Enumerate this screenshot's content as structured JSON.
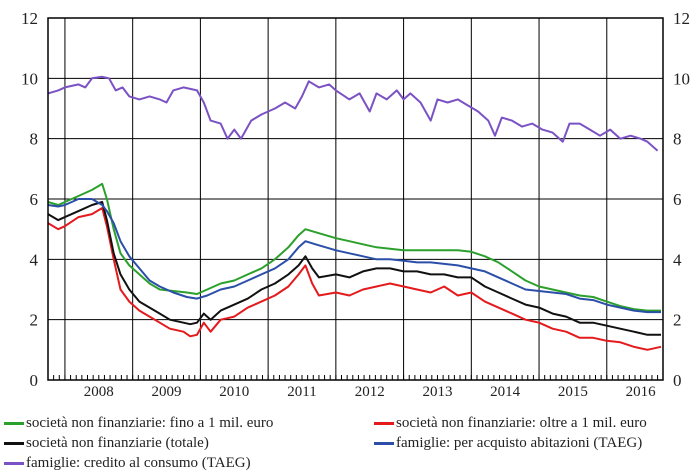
{
  "chart_data": {
    "type": "line",
    "title": "",
    "xlabel": "",
    "ylabel": "",
    "ylim": [
      0,
      12
    ],
    "yticks": [
      0,
      2,
      4,
      6,
      8,
      10,
      12
    ],
    "xlim": [
      2007.75,
      2016.83
    ],
    "xtick_labels": [
      "2008",
      "2009",
      "2010",
      "2011",
      "2012",
      "2013",
      "2014",
      "2015",
      "2016"
    ],
    "grid": true,
    "legend_position": "bottom",
    "series": [
      {
        "name": "società non finanziarie: fino a 1 mil. euro",
        "color": "#2ca02c",
        "points": [
          [
            2007.75,
            5.9
          ],
          [
            2007.9,
            5.8
          ],
          [
            2008.0,
            5.9
          ],
          [
            2008.2,
            6.1
          ],
          [
            2008.4,
            6.3
          ],
          [
            2008.55,
            6.5
          ],
          [
            2008.62,
            6.0
          ],
          [
            2008.72,
            5.0
          ],
          [
            2008.82,
            4.2
          ],
          [
            2008.95,
            3.8
          ],
          [
            2009.1,
            3.5
          ],
          [
            2009.25,
            3.2
          ],
          [
            2009.4,
            3.0
          ],
          [
            2009.6,
            2.95
          ],
          [
            2009.8,
            2.9
          ],
          [
            2009.95,
            2.85
          ],
          [
            2010.1,
            3.0
          ],
          [
            2010.3,
            3.2
          ],
          [
            2010.5,
            3.3
          ],
          [
            2010.7,
            3.5
          ],
          [
            2010.9,
            3.7
          ],
          [
            2011.1,
            4.0
          ],
          [
            2011.3,
            4.4
          ],
          [
            2011.45,
            4.8
          ],
          [
            2011.55,
            5.0
          ],
          [
            2011.7,
            4.9
          ],
          [
            2011.85,
            4.8
          ],
          [
            2012.0,
            4.7
          ],
          [
            2012.2,
            4.6
          ],
          [
            2012.4,
            4.5
          ],
          [
            2012.6,
            4.4
          ],
          [
            2012.8,
            4.35
          ],
          [
            2013.0,
            4.3
          ],
          [
            2013.2,
            4.3
          ],
          [
            2013.4,
            4.3
          ],
          [
            2013.6,
            4.3
          ],
          [
            2013.8,
            4.3
          ],
          [
            2014.0,
            4.25
          ],
          [
            2014.2,
            4.1
          ],
          [
            2014.4,
            3.9
          ],
          [
            2014.6,
            3.6
          ],
          [
            2014.8,
            3.3
          ],
          [
            2015.0,
            3.1
          ],
          [
            2015.2,
            3.0
          ],
          [
            2015.4,
            2.9
          ],
          [
            2015.6,
            2.8
          ],
          [
            2015.8,
            2.75
          ],
          [
            2016.0,
            2.6
          ],
          [
            2016.2,
            2.45
          ],
          [
            2016.4,
            2.35
          ],
          [
            2016.6,
            2.3
          ],
          [
            2016.8,
            2.3
          ]
        ]
      },
      {
        "name": "società non finanziarie: oltre a 1 mil. euro",
        "color": "#e41a1c",
        "points": [
          [
            2007.75,
            5.2
          ],
          [
            2007.9,
            5.0
          ],
          [
            2008.0,
            5.1
          ],
          [
            2008.2,
            5.4
          ],
          [
            2008.4,
            5.5
          ],
          [
            2008.55,
            5.7
          ],
          [
            2008.62,
            5.1
          ],
          [
            2008.72,
            4.0
          ],
          [
            2008.82,
            3.0
          ],
          [
            2008.95,
            2.6
          ],
          [
            2009.1,
            2.3
          ],
          [
            2009.25,
            2.1
          ],
          [
            2009.4,
            1.9
          ],
          [
            2009.55,
            1.7
          ],
          [
            2009.75,
            1.6
          ],
          [
            2009.85,
            1.45
          ],
          [
            2009.95,
            1.5
          ],
          [
            2010.05,
            1.9
          ],
          [
            2010.15,
            1.6
          ],
          [
            2010.3,
            2.0
          ],
          [
            2010.5,
            2.1
          ],
          [
            2010.7,
            2.4
          ],
          [
            2010.9,
            2.6
          ],
          [
            2011.1,
            2.8
          ],
          [
            2011.3,
            3.1
          ],
          [
            2011.45,
            3.5
          ],
          [
            2011.55,
            3.8
          ],
          [
            2011.65,
            3.2
          ],
          [
            2011.75,
            2.8
          ],
          [
            2012.0,
            2.9
          ],
          [
            2012.2,
            2.8
          ],
          [
            2012.4,
            3.0
          ],
          [
            2012.6,
            3.1
          ],
          [
            2012.8,
            3.2
          ],
          [
            2013.0,
            3.1
          ],
          [
            2013.2,
            3.0
          ],
          [
            2013.4,
            2.9
          ],
          [
            2013.6,
            3.1
          ],
          [
            2013.8,
            2.8
          ],
          [
            2014.0,
            2.9
          ],
          [
            2014.2,
            2.6
          ],
          [
            2014.4,
            2.4
          ],
          [
            2014.6,
            2.2
          ],
          [
            2014.8,
            2.0
          ],
          [
            2015.0,
            1.9
          ],
          [
            2015.2,
            1.7
          ],
          [
            2015.4,
            1.6
          ],
          [
            2015.6,
            1.4
          ],
          [
            2015.8,
            1.4
          ],
          [
            2016.0,
            1.3
          ],
          [
            2016.2,
            1.25
          ],
          [
            2016.4,
            1.1
          ],
          [
            2016.6,
            1.0
          ],
          [
            2016.8,
            1.1
          ]
        ]
      },
      {
        "name": "società non finanziarie (totale)",
        "color": "#111111",
        "points": [
          [
            2007.75,
            5.5
          ],
          [
            2007.9,
            5.3
          ],
          [
            2008.0,
            5.4
          ],
          [
            2008.2,
            5.6
          ],
          [
            2008.4,
            5.8
          ],
          [
            2008.55,
            5.9
          ],
          [
            2008.62,
            5.3
          ],
          [
            2008.72,
            4.2
          ],
          [
            2008.82,
            3.5
          ],
          [
            2008.95,
            3.0
          ],
          [
            2009.1,
            2.6
          ],
          [
            2009.25,
            2.4
          ],
          [
            2009.4,
            2.2
          ],
          [
            2009.55,
            2.0
          ],
          [
            2009.75,
            1.9
          ],
          [
            2009.85,
            1.85
          ],
          [
            2009.95,
            1.9
          ],
          [
            2010.05,
            2.2
          ],
          [
            2010.15,
            2.0
          ],
          [
            2010.3,
            2.3
          ],
          [
            2010.5,
            2.5
          ],
          [
            2010.7,
            2.7
          ],
          [
            2010.9,
            3.0
          ],
          [
            2011.1,
            3.2
          ],
          [
            2011.3,
            3.5
          ],
          [
            2011.45,
            3.8
          ],
          [
            2011.55,
            4.1
          ],
          [
            2011.65,
            3.7
          ],
          [
            2011.75,
            3.4
          ],
          [
            2012.0,
            3.5
          ],
          [
            2012.2,
            3.4
          ],
          [
            2012.4,
            3.6
          ],
          [
            2012.6,
            3.7
          ],
          [
            2012.8,
            3.7
          ],
          [
            2013.0,
            3.6
          ],
          [
            2013.2,
            3.6
          ],
          [
            2013.4,
            3.5
          ],
          [
            2013.6,
            3.5
          ],
          [
            2013.8,
            3.4
          ],
          [
            2014.0,
            3.4
          ],
          [
            2014.2,
            3.1
          ],
          [
            2014.4,
            2.9
          ],
          [
            2014.6,
            2.7
          ],
          [
            2014.8,
            2.5
          ],
          [
            2015.0,
            2.4
          ],
          [
            2015.2,
            2.2
          ],
          [
            2015.4,
            2.1
          ],
          [
            2015.6,
            1.9
          ],
          [
            2015.8,
            1.9
          ],
          [
            2016.0,
            1.8
          ],
          [
            2016.2,
            1.7
          ],
          [
            2016.4,
            1.6
          ],
          [
            2016.6,
            1.5
          ],
          [
            2016.8,
            1.5
          ]
        ]
      },
      {
        "name": "famiglie: per acquisto abitazioni (TAEG)",
        "color": "#2b4fa8",
        "points": [
          [
            2007.75,
            5.8
          ],
          [
            2007.9,
            5.75
          ],
          [
            2008.0,
            5.8
          ],
          [
            2008.2,
            6.0
          ],
          [
            2008.4,
            6.0
          ],
          [
            2008.55,
            5.8
          ],
          [
            2008.62,
            5.6
          ],
          [
            2008.72,
            5.2
          ],
          [
            2008.82,
            4.6
          ],
          [
            2008.95,
            4.1
          ],
          [
            2009.1,
            3.7
          ],
          [
            2009.25,
            3.3
          ],
          [
            2009.4,
            3.1
          ],
          [
            2009.6,
            2.9
          ],
          [
            2009.8,
            2.75
          ],
          [
            2009.95,
            2.7
          ],
          [
            2010.1,
            2.8
          ],
          [
            2010.3,
            3.0
          ],
          [
            2010.5,
            3.1
          ],
          [
            2010.7,
            3.3
          ],
          [
            2010.9,
            3.5
          ],
          [
            2011.1,
            3.7
          ],
          [
            2011.3,
            4.0
          ],
          [
            2011.45,
            4.4
          ],
          [
            2011.55,
            4.6
          ],
          [
            2011.7,
            4.5
          ],
          [
            2011.85,
            4.4
          ],
          [
            2012.0,
            4.3
          ],
          [
            2012.2,
            4.2
          ],
          [
            2012.4,
            4.1
          ],
          [
            2012.6,
            4.0
          ],
          [
            2012.8,
            4.0
          ],
          [
            2013.0,
            3.95
          ],
          [
            2013.2,
            3.9
          ],
          [
            2013.4,
            3.9
          ],
          [
            2013.6,
            3.85
          ],
          [
            2013.8,
            3.8
          ],
          [
            2014.0,
            3.7
          ],
          [
            2014.2,
            3.6
          ],
          [
            2014.4,
            3.4
          ],
          [
            2014.6,
            3.2
          ],
          [
            2014.8,
            3.0
          ],
          [
            2015.0,
            2.95
          ],
          [
            2015.2,
            2.9
          ],
          [
            2015.4,
            2.85
          ],
          [
            2015.6,
            2.7
          ],
          [
            2015.8,
            2.65
          ],
          [
            2016.0,
            2.5
          ],
          [
            2016.2,
            2.4
          ],
          [
            2016.4,
            2.3
          ],
          [
            2016.6,
            2.25
          ],
          [
            2016.8,
            2.25
          ]
        ]
      },
      {
        "name": "famiglie: credito al consumo (TAEG)",
        "color": "#7b52c4",
        "points": [
          [
            2007.75,
            9.5
          ],
          [
            2007.9,
            9.6
          ],
          [
            2008.0,
            9.7
          ],
          [
            2008.2,
            9.8
          ],
          [
            2008.3,
            9.7
          ],
          [
            2008.4,
            10.0
          ],
          [
            2008.55,
            10.05
          ],
          [
            2008.65,
            10.0
          ],
          [
            2008.75,
            9.6
          ],
          [
            2008.85,
            9.7
          ],
          [
            2008.95,
            9.4
          ],
          [
            2009.1,
            9.3
          ],
          [
            2009.25,
            9.4
          ],
          [
            2009.4,
            9.3
          ],
          [
            2009.5,
            9.2
          ],
          [
            2009.6,
            9.6
          ],
          [
            2009.75,
            9.7
          ],
          [
            2009.95,
            9.6
          ],
          [
            2010.05,
            9.2
          ],
          [
            2010.15,
            8.6
          ],
          [
            2010.3,
            8.5
          ],
          [
            2010.4,
            8.0
          ],
          [
            2010.5,
            8.3
          ],
          [
            2010.6,
            8.0
          ],
          [
            2010.75,
            8.6
          ],
          [
            2010.9,
            8.8
          ],
          [
            2011.1,
            9.0
          ],
          [
            2011.25,
            9.2
          ],
          [
            2011.4,
            9.0
          ],
          [
            2011.5,
            9.4
          ],
          [
            2011.6,
            9.9
          ],
          [
            2011.75,
            9.7
          ],
          [
            2011.9,
            9.8
          ],
          [
            2012.0,
            9.6
          ],
          [
            2012.2,
            9.3
          ],
          [
            2012.35,
            9.5
          ],
          [
            2012.5,
            8.9
          ],
          [
            2012.6,
            9.5
          ],
          [
            2012.75,
            9.3
          ],
          [
            2012.9,
            9.6
          ],
          [
            2013.0,
            9.3
          ],
          [
            2013.1,
            9.5
          ],
          [
            2013.25,
            9.2
          ],
          [
            2013.4,
            8.6
          ],
          [
            2013.5,
            9.3
          ],
          [
            2013.65,
            9.2
          ],
          [
            2013.8,
            9.3
          ],
          [
            2013.95,
            9.1
          ],
          [
            2014.1,
            8.9
          ],
          [
            2014.25,
            8.6
          ],
          [
            2014.35,
            8.1
          ],
          [
            2014.45,
            8.7
          ],
          [
            2014.6,
            8.6
          ],
          [
            2014.75,
            8.4
          ],
          [
            2014.9,
            8.5
          ],
          [
            2015.05,
            8.3
          ],
          [
            2015.2,
            8.2
          ],
          [
            2015.35,
            7.9
          ],
          [
            2015.45,
            8.5
          ],
          [
            2015.6,
            8.5
          ],
          [
            2015.75,
            8.3
          ],
          [
            2015.9,
            8.1
          ],
          [
            2016.05,
            8.3
          ],
          [
            2016.2,
            8.0
          ],
          [
            2016.35,
            8.1
          ],
          [
            2016.5,
            8.0
          ],
          [
            2016.6,
            7.9
          ],
          [
            2016.75,
            7.6
          ]
        ]
      }
    ]
  }
}
